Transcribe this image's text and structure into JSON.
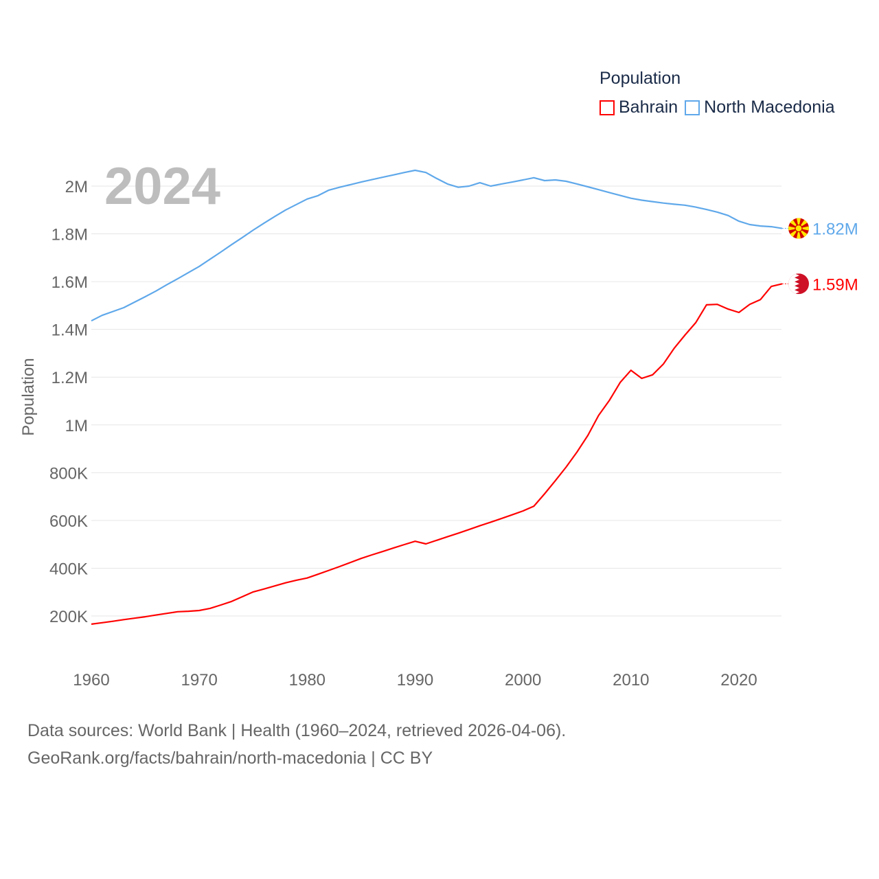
{
  "legend": {
    "title": "Population",
    "items": [
      {
        "label": "Bahrain",
        "color": "#ff0000"
      },
      {
        "label": "North Macedonia",
        "color": "#5fa8ea"
      }
    ]
  },
  "year_label": "2024",
  "footer": {
    "line1": "Data sources: World Bank | Health (1960–2024, retrieved 2026-04-06).",
    "line2": "GeoRank.org/facts/bahrain/north-macedonia | CC BY"
  },
  "chart_data": {
    "type": "line",
    "title": "Population",
    "xlabel": "",
    "ylabel": "Population",
    "xlim": [
      1960,
      2024
    ],
    "ylim": [
      0,
      2000000
    ],
    "grid": true,
    "legend_position": "top-right",
    "x_ticks": [
      1960,
      1970,
      1980,
      1990,
      2000,
      2010,
      2020
    ],
    "x_tick_labels": [
      "1960",
      "1970",
      "1980",
      "1990",
      "2000",
      "2010",
      "2020"
    ],
    "y_ticks": [
      200000,
      400000,
      600000,
      800000,
      1000000,
      1200000,
      1400000,
      1600000,
      1800000,
      2000000
    ],
    "y_tick_labels": [
      "200K",
      "400K",
      "600K",
      "800K",
      "1M",
      "1.2M",
      "1.4M",
      "1.6M",
      "1.8M",
      "2M"
    ],
    "x_start": 1960,
    "series": [
      {
        "name": "Bahrain",
        "color": "#ff0000",
        "end_label": "1.59M",
        "flag": "bahrain-flag",
        "values": [
          166000,
          172000,
          178000,
          185000,
          191000,
          197000,
          204000,
          211000,
          218000,
          220000,
          223000,
          232000,
          246000,
          261000,
          281000,
          301000,
          313000,
          326000,
          339000,
          350000,
          359000,
          375000,
          391000,
          407000,
          424000,
          441000,
          456000,
          470000,
          485000,
          499000,
          513000,
          502000,
          517000,
          532000,
          547000,
          562000,
          578000,
          593000,
          608000,
          624000,
          640000,
          660000,
          712000,
          767000,
          824000,
          887000,
          956000,
          1040000,
          1103000,
          1178000,
          1229000,
          1195000,
          1210000,
          1255000,
          1321000,
          1376000,
          1428000,
          1503000,
          1505000,
          1485000,
          1471000,
          1505000,
          1525000,
          1580000,
          1591000
        ]
      },
      {
        "name": "North Macedonia",
        "color": "#5fa8ea",
        "end_label": "1.82M",
        "flag": "north-macedonia-flag",
        "values": [
          1436000,
          1459000,
          1475000,
          1491000,
          1514000,
          1537000,
          1561000,
          1587000,
          1612000,
          1638000,
          1664000,
          1694000,
          1724000,
          1755000,
          1785000,
          1816000,
          1845000,
          1873000,
          1900000,
          1923000,
          1946000,
          1960000,
          1983000,
          1995000,
          2006000,
          2017000,
          2027000,
          2037000,
          2047000,
          2057000,
          2066000,
          2057000,
          2032000,
          2009000,
          1995000,
          2000000,
          2014000,
          2000000,
          2009000,
          2017000,
          2026000,
          2035000,
          2023000,
          2026000,
          2020000,
          2009000,
          1997000,
          1985000,
          1973000,
          1961000,
          1949000,
          1941000,
          1935000,
          1929000,
          1924000,
          1920000,
          1912000,
          1902000,
          1891000,
          1877000,
          1853000,
          1839000,
          1833000,
          1830000,
          1823000
        ]
      }
    ]
  }
}
